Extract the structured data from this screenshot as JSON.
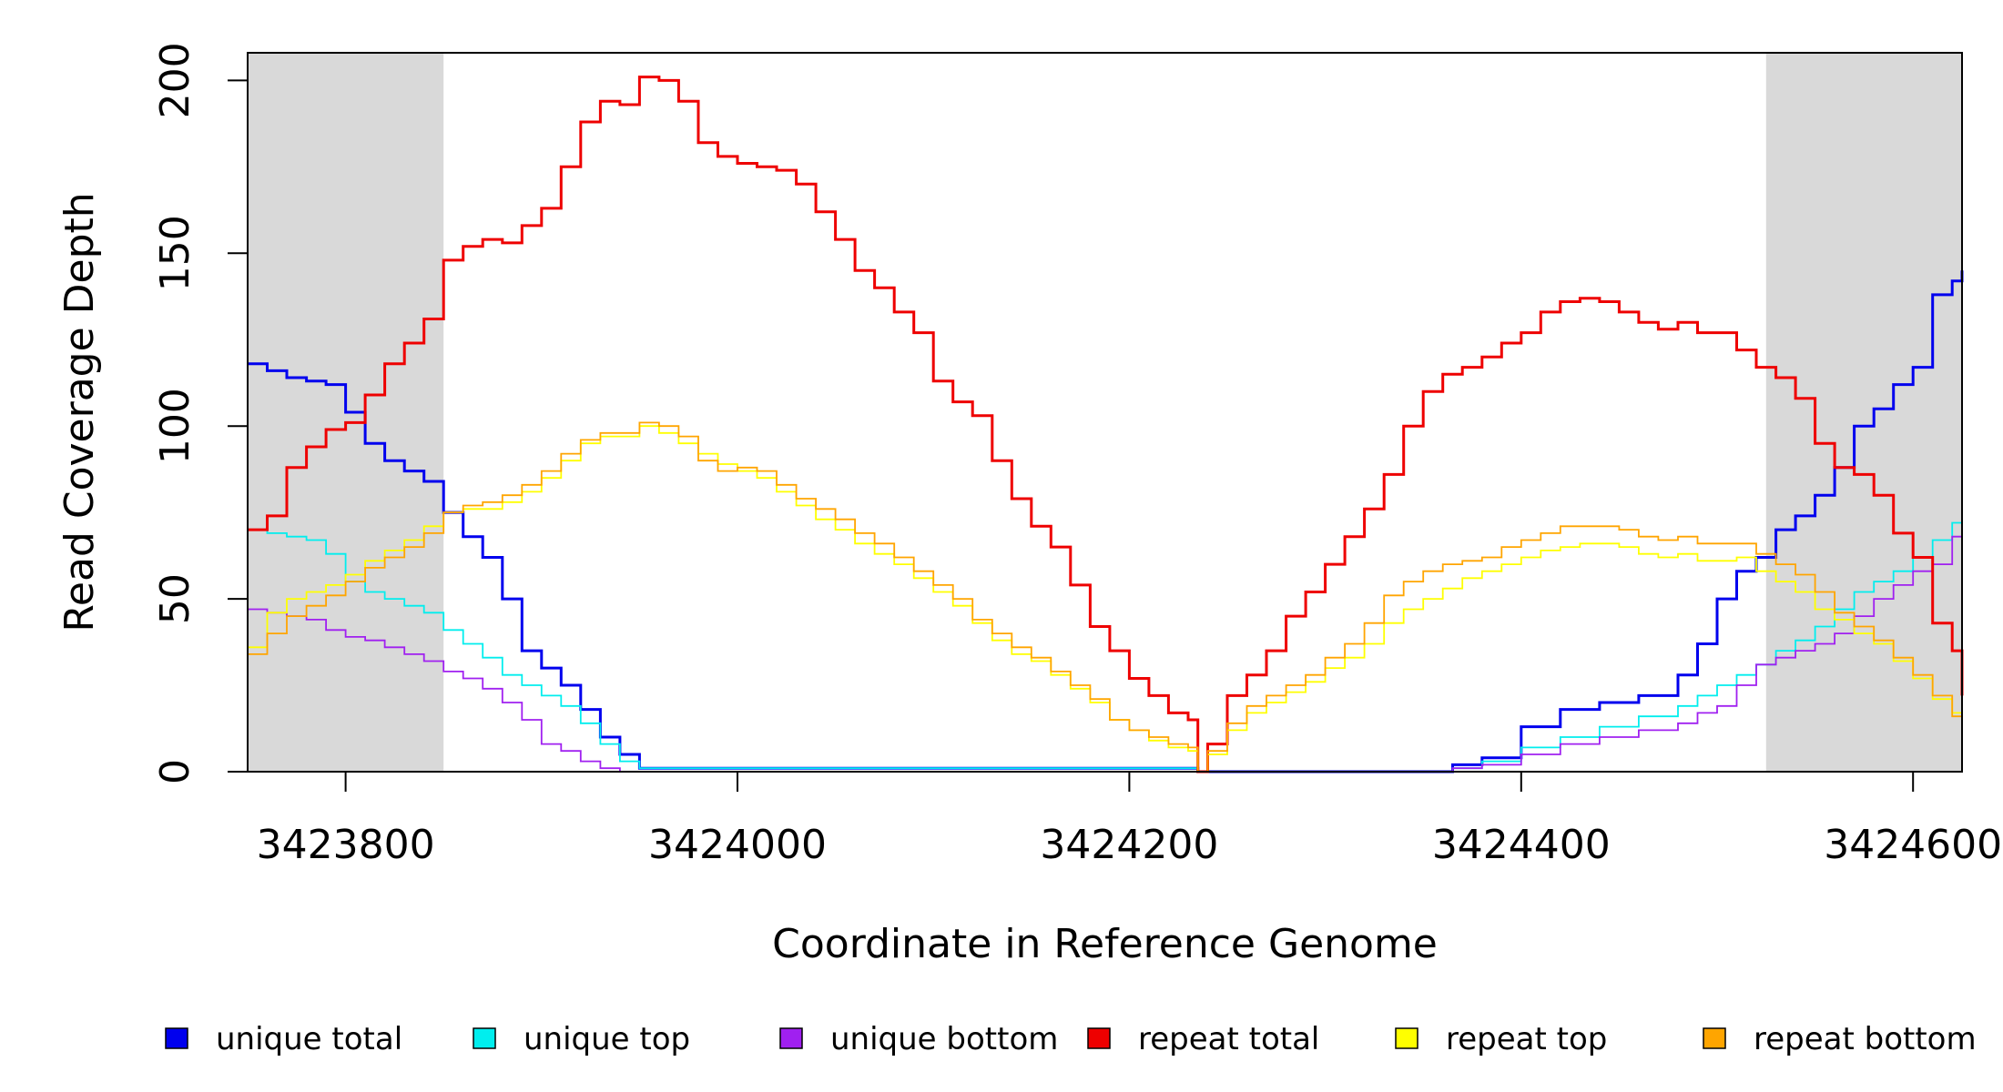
{
  "chart_data": {
    "type": "line",
    "xlabel": "Coordinate in Reference Genome",
    "ylabel": "Read Coverage Depth",
    "xlim": [
      3423750,
      3424625
    ],
    "ylim": [
      0,
      208
    ],
    "x_ticks": [
      3423800,
      3424000,
      3424200,
      3424400,
      3424600
    ],
    "x_tick_labels": [
      "3423800",
      "3424000",
      "3424200",
      "3424400",
      "3424600"
    ],
    "y_ticks": [
      0,
      50,
      100,
      150,
      200
    ],
    "y_tick_labels": [
      "0",
      "50",
      "100",
      "150",
      "200"
    ],
    "shaded_regions": [
      [
        3423750,
        3423850
      ],
      [
        3424525,
        3424625
      ]
    ],
    "shaded_color": "#d9d9d9",
    "legend_position": "bottom",
    "series": [
      {
        "name": "unique total",
        "color": "#0000ee",
        "x": [
          3423750,
          3423760,
          3423770,
          3423780,
          3423790,
          3423800,
          3423810,
          3423820,
          3423830,
          3423840,
          3423850,
          3423860,
          3423870,
          3423880,
          3423890,
          3423900,
          3423910,
          3423920,
          3423930,
          3423940,
          3423950,
          3424100,
          3424230,
          3424235,
          3424365,
          3424380,
          3424400,
          3424420,
          3424440,
          3424460,
          3424480,
          3424490,
          3424500,
          3424510,
          3424520,
          3424530,
          3424540,
          3424550,
          3424560,
          3424570,
          3424580,
          3424590,
          3424600,
          3424610,
          3424620,
          3424625
        ],
        "values": [
          118,
          116,
          114,
          113,
          112,
          104,
          95,
          90,
          87,
          84,
          75,
          68,
          62,
          50,
          35,
          30,
          25,
          18,
          10,
          5,
          1,
          1,
          1,
          0,
          2,
          4,
          13,
          18,
          20,
          22,
          28,
          37,
          50,
          58,
          62,
          70,
          74,
          80,
          88,
          100,
          105,
          112,
          117,
          138,
          142,
          145
        ]
      },
      {
        "name": "unique top",
        "color": "#00eeee",
        "x": [
          3423750,
          3423760,
          3423770,
          3423780,
          3423790,
          3423800,
          3423810,
          3423820,
          3423830,
          3423840,
          3423850,
          3423860,
          3423870,
          3423880,
          3423890,
          3423900,
          3423910,
          3423920,
          3423930,
          3423940,
          3423950,
          3424230,
          3424235,
          3424365,
          3424380,
          3424400,
          3424420,
          3424440,
          3424460,
          3424480,
          3424490,
          3424500,
          3424510,
          3424520,
          3424530,
          3424540,
          3424550,
          3424560,
          3424570,
          3424580,
          3424590,
          3424600,
          3424610,
          3424620,
          3424625
        ],
        "values": [
          70,
          69,
          68,
          67,
          63,
          55,
          52,
          50,
          48,
          46,
          41,
          37,
          33,
          28,
          25,
          22,
          19,
          14,
          8,
          3,
          1,
          1,
          0,
          1,
          3,
          7,
          10,
          13,
          16,
          19,
          22,
          25,
          28,
          31,
          35,
          38,
          42,
          47,
          52,
          55,
          58,
          62,
          67,
          72,
          73
        ]
      },
      {
        "name": "unique bottom",
        "color": "#a020f0",
        "x": [
          3423750,
          3423760,
          3423770,
          3423780,
          3423790,
          3423800,
          3423810,
          3423820,
          3423830,
          3423840,
          3423850,
          3423860,
          3423870,
          3423880,
          3423890,
          3423900,
          3423910,
          3423920,
          3423930,
          3423940,
          3424230,
          3424235,
          3424365,
          3424380,
          3424400,
          3424420,
          3424440,
          3424460,
          3424480,
          3424490,
          3424500,
          3424510,
          3424520,
          3424530,
          3424540,
          3424550,
          3424560,
          3424570,
          3424580,
          3424590,
          3424600,
          3424610,
          3424620,
          3424625
        ],
        "values": [
          47,
          46,
          45,
          44,
          41,
          39,
          38,
          36,
          34,
          32,
          29,
          27,
          24,
          20,
          15,
          8,
          6,
          3,
          1,
          0,
          0,
          0,
          1,
          2,
          5,
          8,
          10,
          12,
          14,
          17,
          19,
          25,
          31,
          33,
          35,
          37,
          40,
          45,
          50,
          54,
          58,
          60,
          68,
          71
        ]
      },
      {
        "name": "repeat total",
        "color": "#ee0000",
        "x": [
          3423750,
          3423760,
          3423770,
          3423780,
          3423790,
          3423800,
          3423810,
          3423820,
          3423830,
          3423840,
          3423850,
          3423860,
          3423870,
          3423880,
          3423890,
          3423900,
          3423910,
          3423920,
          3423930,
          3423940,
          3423950,
          3423960,
          3423970,
          3423980,
          3423990,
          3424000,
          3424010,
          3424020,
          3424030,
          3424040,
          3424050,
          3424060,
          3424070,
          3424080,
          3424090,
          3424100,
          3424110,
          3424120,
          3424130,
          3424140,
          3424150,
          3424160,
          3424170,
          3424180,
          3424190,
          3424200,
          3424210,
          3424220,
          3424230,
          3424235,
          3424240,
          3424250,
          3424260,
          3424270,
          3424280,
          3424290,
          3424300,
          3424310,
          3424320,
          3424330,
          3424340,
          3424350,
          3424360,
          3424370,
          3424380,
          3424390,
          3424400,
          3424410,
          3424420,
          3424430,
          3424440,
          3424450,
          3424460,
          3424470,
          3424480,
          3424490,
          3424500,
          3424510,
          3424520,
          3424530,
          3424540,
          3424550,
          3424560,
          3424570,
          3424580,
          3424590,
          3424600,
          3424610,
          3424620,
          3424625
        ],
        "values": [
          70,
          74,
          88,
          94,
          99,
          101,
          109,
          118,
          124,
          131,
          148,
          152,
          154,
          153,
          158,
          163,
          175,
          188,
          194,
          193,
          201,
          200,
          194,
          182,
          178,
          176,
          175,
          174,
          170,
          162,
          154,
          145,
          140,
          133,
          127,
          113,
          107,
          103,
          90,
          79,
          71,
          65,
          54,
          42,
          35,
          27,
          22,
          17,
          15,
          0,
          8,
          22,
          28,
          35,
          45,
          52,
          60,
          68,
          76,
          86,
          100,
          110,
          115,
          117,
          120,
          124,
          127,
          133,
          136,
          137,
          136,
          133,
          130,
          128,
          130,
          127,
          127,
          122,
          117,
          114,
          108,
          95,
          88,
          86,
          80,
          69,
          62,
          43,
          35,
          22
        ]
      },
      {
        "name": "repeat top",
        "color": "#ffff00",
        "x": [
          3423750,
          3423760,
          3423770,
          3423780,
          3423790,
          3423800,
          3423810,
          3423820,
          3423830,
          3423840,
          3423850,
          3423860,
          3423870,
          3423880,
          3423890,
          3423900,
          3423910,
          3423920,
          3423930,
          3423940,
          3423950,
          3423960,
          3423970,
          3423980,
          3423990,
          3424000,
          3424010,
          3424020,
          3424030,
          3424040,
          3424050,
          3424060,
          3424070,
          3424080,
          3424090,
          3424100,
          3424110,
          3424120,
          3424130,
          3424140,
          3424150,
          3424160,
          3424170,
          3424180,
          3424190,
          3424200,
          3424210,
          3424220,
          3424230,
          3424235,
          3424240,
          3424250,
          3424260,
          3424270,
          3424280,
          3424290,
          3424300,
          3424310,
          3424320,
          3424330,
          3424340,
          3424350,
          3424360,
          3424370,
          3424380,
          3424390,
          3424400,
          3424410,
          3424420,
          3424430,
          3424440,
          3424450,
          3424460,
          3424470,
          3424480,
          3424490,
          3424500,
          3424510,
          3424520,
          3424530,
          3424540,
          3424550,
          3424560,
          3424570,
          3424580,
          3424590,
          3424600,
          3424610,
          3424620,
          3424625
        ],
        "values": [
          36,
          46,
          50,
          52,
          54,
          57,
          61,
          64,
          67,
          71,
          75,
          76,
          76,
          78,
          81,
          85,
          90,
          95,
          97,
          97,
          100,
          98,
          95,
          92,
          89,
          87,
          85,
          81,
          77,
          73,
          70,
          66,
          63,
          60,
          56,
          52,
          48,
          43,
          38,
          34,
          32,
          28,
          24,
          20,
          15,
          12,
          9,
          7,
          6,
          0,
          5,
          12,
          17,
          20,
          23,
          26,
          30,
          33,
          37,
          43,
          47,
          50,
          53,
          56,
          58,
          60,
          62,
          64,
          65,
          66,
          66,
          65,
          63,
          62,
          63,
          61,
          61,
          62,
          58,
          55,
          52,
          47,
          44,
          40,
          37,
          32,
          27,
          21,
          17,
          12
        ]
      },
      {
        "name": "repeat bottom",
        "color": "#ffa500",
        "x": [
          3423750,
          3423760,
          3423770,
          3423780,
          3423790,
          3423800,
          3423810,
          3423820,
          3423830,
          3423840,
          3423850,
          3423860,
          3423870,
          3423880,
          3423890,
          3423900,
          3423910,
          3423920,
          3423930,
          3423940,
          3423950,
          3423960,
          3423970,
          3423980,
          3423990,
          3424000,
          3424010,
          3424020,
          3424030,
          3424040,
          3424050,
          3424060,
          3424070,
          3424080,
          3424090,
          3424100,
          3424110,
          3424120,
          3424130,
          3424140,
          3424150,
          3424160,
          3424170,
          3424180,
          3424190,
          3424200,
          3424210,
          3424220,
          3424230,
          3424235,
          3424240,
          3424250,
          3424260,
          3424270,
          3424280,
          3424290,
          3424300,
          3424310,
          3424320,
          3424330,
          3424340,
          3424350,
          3424360,
          3424370,
          3424380,
          3424390,
          3424400,
          3424410,
          3424420,
          3424430,
          3424440,
          3424450,
          3424460,
          3424470,
          3424480,
          3424490,
          3424500,
          3424510,
          3424520,
          3424530,
          3424540,
          3424550,
          3424560,
          3424570,
          3424580,
          3424590,
          3424600,
          3424610,
          3424620,
          3424625
        ],
        "values": [
          34,
          40,
          45,
          48,
          51,
          55,
          59,
          62,
          65,
          69,
          75,
          77,
          78,
          80,
          83,
          87,
          92,
          96,
          98,
          98,
          101,
          100,
          97,
          90,
          87,
          88,
          87,
          83,
          79,
          76,
          73,
          69,
          66,
          62,
          58,
          54,
          50,
          44,
          40,
          36,
          33,
          29,
          25,
          21,
          15,
          12,
          10,
          8,
          7,
          0,
          6,
          14,
          19,
          22,
          25,
          28,
          33,
          37,
          43,
          51,
          55,
          58,
          60,
          61,
          62,
          65,
          67,
          69,
          71,
          71,
          71,
          70,
          68,
          67,
          68,
          66,
          66,
          66,
          63,
          60,
          57,
          52,
          46,
          42,
          38,
          33,
          28,
          22,
          16,
          10
        ]
      }
    ]
  }
}
